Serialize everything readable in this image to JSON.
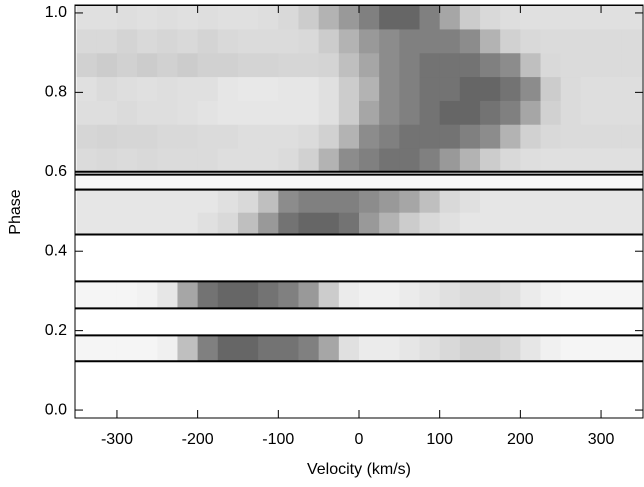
{
  "chart_data": {
    "type": "heatmap",
    "xlabel": "Velocity (km/s)",
    "ylabel": "Phase",
    "xlim": [
      -352,
      352
    ],
    "ylim": [
      -0.02,
      1.02
    ],
    "xticks": [
      -300,
      -200,
      -100,
      0,
      100,
      200,
      300
    ],
    "yticks": [
      {
        "value": 0,
        "label": "0.0"
      },
      0.2,
      0.4,
      0.6,
      0.8,
      {
        "value": 1,
        "label": "1.0"
      }
    ],
    "bins": [
      -350,
      -325,
      -300,
      -275,
      -250,
      -225,
      -200,
      -175,
      -150,
      -125,
      -100,
      -75,
      -50,
      -25,
      0,
      25,
      50,
      75,
      100,
      125,
      150,
      175,
      200,
      225,
      250,
      275,
      300,
      325,
      350
    ],
    "bands": [
      {
        "phase": [
          0.6,
          1.02
        ],
        "rows": [
          [
            0.14,
            0.15,
            0.14,
            0.15,
            0.14,
            0.14,
            0.14,
            0.13,
            0.13,
            0.13,
            0.14,
            0.18,
            0.3,
            0.45,
            0.5,
            0.55,
            0.55,
            0.5,
            0.4,
            0.3,
            0.2,
            0.15,
            0.13,
            0.12,
            0.12,
            0.12,
            0.12,
            0.12
          ],
          [
            0.16,
            0.17,
            0.16,
            0.16,
            0.15,
            0.15,
            0.14,
            0.14,
            0.13,
            0.13,
            0.13,
            0.14,
            0.18,
            0.3,
            0.45,
            0.5,
            0.55,
            0.55,
            0.55,
            0.5,
            0.45,
            0.3,
            0.18,
            0.15,
            0.14,
            0.14,
            0.14,
            0.14
          ],
          [
            0.13,
            0.13,
            0.14,
            0.13,
            0.13,
            0.12,
            0.11,
            0.1,
            0.1,
            0.1,
            0.1,
            0.1,
            0.12,
            0.2,
            0.35,
            0.45,
            0.5,
            0.55,
            0.6,
            0.6,
            0.55,
            0.5,
            0.35,
            0.18,
            0.14,
            0.13,
            0.13,
            0.13
          ],
          [
            0.12,
            0.14,
            0.13,
            0.12,
            0.13,
            0.12,
            0.12,
            0.1,
            0.09,
            0.09,
            0.1,
            0.1,
            0.12,
            0.2,
            0.3,
            0.45,
            0.5,
            0.55,
            0.55,
            0.6,
            0.6,
            0.55,
            0.45,
            0.2,
            0.14,
            0.13,
            0.13,
            0.13
          ],
          [
            0.18,
            0.2,
            0.18,
            0.2,
            0.18,
            0.2,
            0.18,
            0.18,
            0.17,
            0.17,
            0.16,
            0.16,
            0.17,
            0.25,
            0.35,
            0.45,
            0.5,
            0.55,
            0.55,
            0.55,
            0.5,
            0.45,
            0.25,
            0.15,
            0.14,
            0.14,
            0.14,
            0.14
          ],
          [
            0.15,
            0.15,
            0.17,
            0.15,
            0.16,
            0.15,
            0.17,
            0.15,
            0.14,
            0.14,
            0.14,
            0.15,
            0.2,
            0.3,
            0.4,
            0.45,
            0.5,
            0.5,
            0.5,
            0.45,
            0.3,
            0.18,
            0.15,
            0.14,
            0.14,
            0.14,
            0.14,
            0.14
          ],
          [
            0.12,
            0.12,
            0.13,
            0.12,
            0.13,
            0.12,
            0.13,
            0.12,
            0.12,
            0.13,
            0.15,
            0.2,
            0.3,
            0.4,
            0.5,
            0.6,
            0.6,
            0.5,
            0.35,
            0.2,
            0.15,
            0.13,
            0.12,
            0.12,
            0.12,
            0.12,
            0.12,
            0.12
          ]
        ]
      },
      {
        "phase": [
          0.555,
          0.593
        ],
        "rows": [
          [
            0.03,
            0.03,
            0.03,
            0.03,
            0.03,
            0.03,
            0.03,
            0.03,
            0.03,
            0.03,
            0.03,
            0.03,
            0.03,
            0.03,
            0.03,
            0.03,
            0.03,
            0.03,
            0.03,
            0.03,
            0.03,
            0.03,
            0.03,
            0.03,
            0.03,
            0.03,
            0.03,
            0.03
          ]
        ]
      },
      {
        "phase": [
          0.442,
          0.555
        ],
        "rows": [
          [
            0.1,
            0.1,
            0.1,
            0.1,
            0.1,
            0.1,
            0.12,
            0.15,
            0.25,
            0.4,
            0.55,
            0.6,
            0.6,
            0.55,
            0.4,
            0.3,
            0.2,
            0.15,
            0.12,
            0.1,
            0.1,
            0.1,
            0.1,
            0.1,
            0.1,
            0.1,
            0.1,
            0.1
          ],
          [
            0.1,
            0.1,
            0.1,
            0.1,
            0.1,
            0.1,
            0.1,
            0.12,
            0.15,
            0.25,
            0.45,
            0.5,
            0.5,
            0.5,
            0.45,
            0.4,
            0.35,
            0.25,
            0.15,
            0.12,
            0.1,
            0.1,
            0.1,
            0.1,
            0.1,
            0.1,
            0.1,
            0.1
          ]
        ]
      },
      {
        "phase": [
          0.256,
          0.324
        ],
        "rows": [
          [
            0.04,
            0.04,
            0.04,
            0.05,
            0.1,
            0.35,
            0.55,
            0.6,
            0.6,
            0.55,
            0.5,
            0.4,
            0.2,
            0.08,
            0.06,
            0.06,
            0.08,
            0.1,
            0.12,
            0.14,
            0.14,
            0.12,
            0.08,
            0.05,
            0.04,
            0.04,
            0.04,
            0.04
          ]
        ]
      },
      {
        "phase": [
          0.123,
          0.188
        ],
        "rows": [
          [
            0.04,
            0.04,
            0.04,
            0.04,
            0.06,
            0.25,
            0.5,
            0.6,
            0.6,
            0.55,
            0.55,
            0.5,
            0.35,
            0.12,
            0.08,
            0.08,
            0.1,
            0.12,
            0.15,
            0.18,
            0.18,
            0.15,
            0.1,
            0.06,
            0.04,
            0.04,
            0.04,
            0.04
          ]
        ]
      }
    ]
  }
}
